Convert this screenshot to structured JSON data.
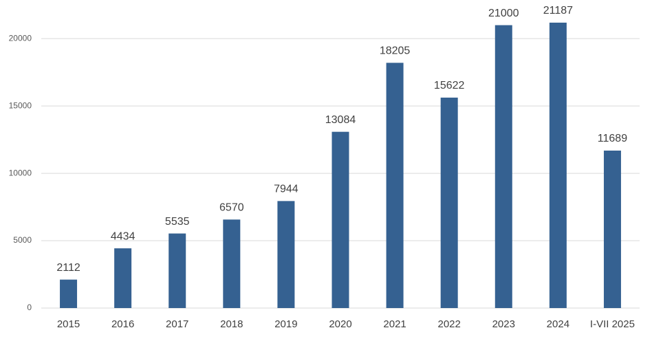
{
  "chart_data": {
    "type": "bar",
    "categories": [
      "2015",
      "2016",
      "2017",
      "2018",
      "2019",
      "2020",
      "2021",
      "2022",
      "2023",
      "2024",
      "I-VII 2025"
    ],
    "values": [
      2112,
      4434,
      5535,
      6570,
      7944,
      13084,
      18205,
      15622,
      21000,
      21187,
      11689
    ],
    "color": "#356191",
    "ylim": [
      0,
      22000
    ],
    "yticks": [
      0,
      5000,
      10000,
      15000,
      20000
    ],
    "grid": true
  }
}
